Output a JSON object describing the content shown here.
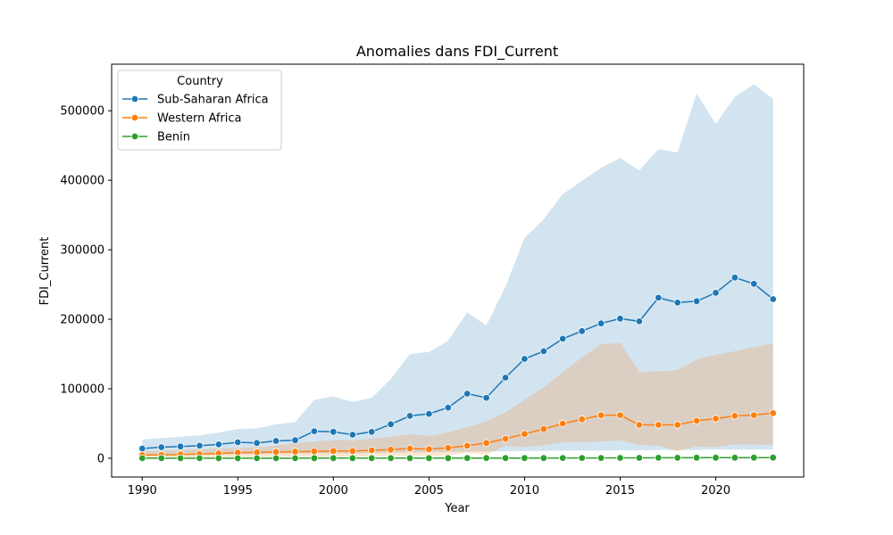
{
  "chart_data": {
    "type": "line",
    "title": "Anomalies dans FDI_Current",
    "xlabel": "Year",
    "ylabel": "FDI_Current",
    "xlim": [
      1988.4,
      2024.6
    ],
    "ylim": [
      -27000,
      567000
    ],
    "xticks": [
      1990,
      1995,
      2000,
      2005,
      2010,
      2015,
      2020
    ],
    "yticks": [
      0,
      100000,
      200000,
      300000,
      400000,
      500000
    ],
    "grid": false,
    "legend": {
      "title": "Country",
      "placement": "top-left"
    },
    "x": [
      1990,
      1991,
      1992,
      1993,
      1994,
      1995,
      1996,
      1997,
      1998,
      1999,
      2000,
      2001,
      2002,
      2003,
      2004,
      2005,
      2006,
      2007,
      2008,
      2009,
      2010,
      2011,
      2012,
      2013,
      2014,
      2015,
      2016,
      2017,
      2018,
      2019,
      2020,
      2021,
      2022,
      2023
    ],
    "series": [
      {
        "name": "Sub-Saharan Africa",
        "color": "#1f77b4",
        "values": [
          14000,
          16000,
          17000,
          18000,
          20000,
          23000,
          22000,
          25000,
          26000,
          39000,
          38000,
          34000,
          38000,
          49000,
          61000,
          64000,
          73000,
          93000,
          87000,
          116000,
          143000,
          154000,
          172000,
          183000,
          194000,
          201000,
          197000,
          231000,
          224000,
          226000,
          238000,
          260000,
          251000,
          229000
        ],
        "band_low": [
          4000,
          4500,
          5000,
          5000,
          5500,
          6000,
          6000,
          6500,
          6500,
          7000,
          7000,
          7000,
          7500,
          8000,
          8500,
          8500,
          9000,
          9500,
          10000,
          10000,
          10500,
          10500,
          11000,
          11000,
          11000,
          11500,
          11500,
          12000,
          12000,
          12000,
          12500,
          12500,
          12500,
          12500
        ],
        "band_high": [
          27000,
          29000,
          31000,
          33000,
          37000,
          42000,
          43000,
          49000,
          52000,
          84000,
          89000,
          81000,
          87000,
          114000,
          150000,
          153000,
          169000,
          210000,
          191000,
          247000,
          317000,
          344000,
          380000,
          399000,
          418000,
          432000,
          414000,
          445000,
          440000,
          525000,
          481000,
          520000,
          538000,
          517000
        ]
      },
      {
        "name": "Western Africa",
        "color": "#ff7f0e",
        "values": [
          4500,
          5000,
          5500,
          6000,
          7000,
          8000,
          8500,
          9000,
          9500,
          10000,
          10500,
          10500,
          11500,
          12500,
          14000,
          13000,
          15000,
          18000,
          22000,
          28000,
          35000,
          42000,
          50000,
          56000,
          62000,
          62000,
          48000,
          48000,
          48000,
          54000,
          57000,
          61000,
          62000,
          65000
        ],
        "band_low": [
          1000,
          1200,
          1300,
          1500,
          1600,
          1800,
          1900,
          2000,
          2100,
          2200,
          2300,
          2500,
          2800,
          3000,
          3500,
          3300,
          4000,
          8000,
          5000,
          18000,
          16000,
          19000,
          23000,
          23000,
          24000,
          26000,
          19000,
          18000,
          10000,
          17000,
          16000,
          20000,
          20000,
          19000
        ],
        "band_high": [
          10000,
          11000,
          12000,
          13000,
          14000,
          15000,
          16000,
          18000,
          22000,
          24000,
          26000,
          26000,
          28000,
          31000,
          35000,
          32000,
          37000,
          45000,
          53000,
          66000,
          84000,
          102000,
          124000,
          145000,
          164000,
          166000,
          124000,
          125000,
          127000,
          142000,
          149000,
          154000,
          160000,
          165000
        ]
      },
      {
        "name": "Benin",
        "color": "#2ca02c",
        "values": [
          50,
          60,
          70,
          80,
          90,
          100,
          110,
          120,
          130,
          140,
          150,
          160,
          180,
          200,
          220,
          240,
          260,
          280,
          300,
          320,
          350,
          380,
          400,
          450,
          500,
          550,
          600,
          700,
          750,
          800,
          850,
          900,
          950,
          1000
        ],
        "band_low": null,
        "band_high": null
      }
    ]
  }
}
